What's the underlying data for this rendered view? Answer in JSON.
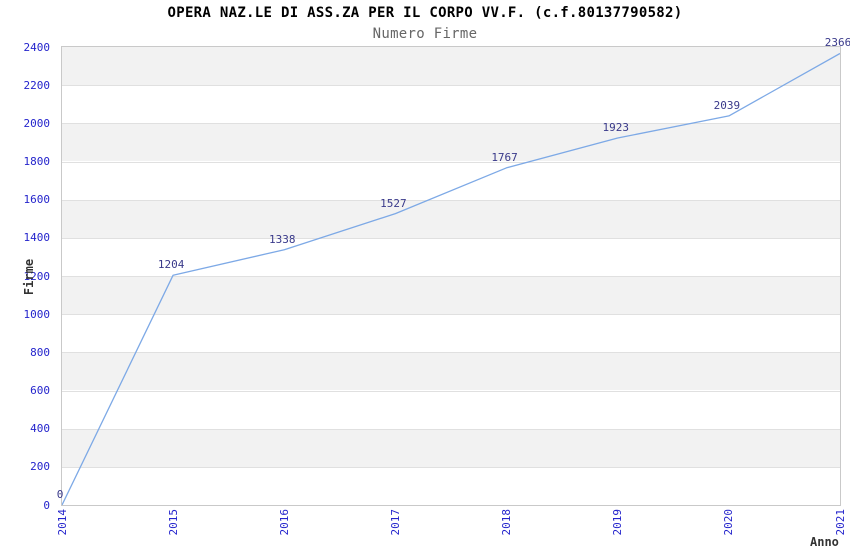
{
  "title": "OPERA NAZ.LE DI ASS.ZA PER IL CORPO VV.F. (c.f.80137790582)",
  "subtitle": "Numero Firme",
  "chart_data": {
    "type": "line",
    "title": "OPERA NAZ.LE DI ASS.ZA PER IL CORPO VV.F. (c.f.80137790582)",
    "subtitle": "Numero Firme",
    "xlabel": "Anno",
    "ylabel": "Firme",
    "categories": [
      "2014",
      "2015",
      "2016",
      "2017",
      "2018",
      "2019",
      "2020",
      "2021"
    ],
    "values": [
      0,
      1204,
      1338,
      1527,
      1767,
      1923,
      2039,
      2366
    ],
    "point_labels": [
      "0",
      "1204",
      "1338",
      "1527",
      "1767",
      "1923",
      "2039",
      "2366"
    ],
    "ylim": [
      0,
      2400
    ],
    "ytick_step": 200,
    "grid": "horizontal-bands-alternating",
    "legend": "none",
    "colors": {
      "line": "#7da9e6",
      "tick_label": "#2424cc",
      "point_label": "#39398a",
      "band": "#f2f2f2",
      "gridline": "#e0e0e0",
      "frame": "#c9c9c9",
      "title": "#000000",
      "subtitle": "#666666",
      "axis_name": "#333333"
    }
  }
}
